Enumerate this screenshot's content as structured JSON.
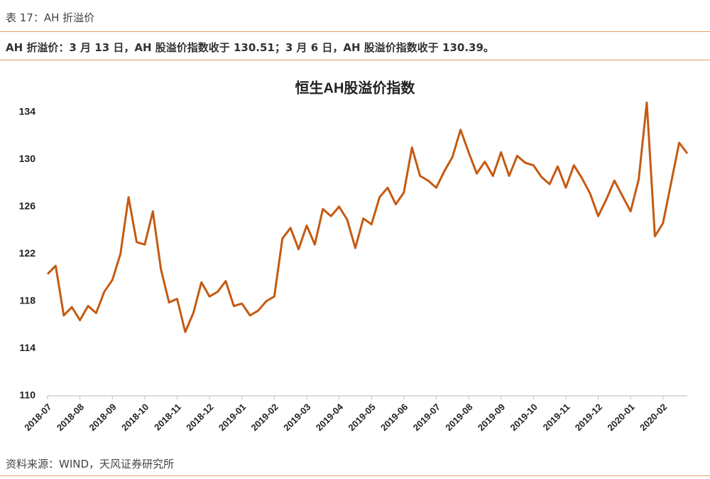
{
  "header": {
    "title": "表 17：AH 折溢价",
    "subtitle": "AH 折溢价：3 月 13 日，AH 股溢价指数收于 130.51；3 月 6 日，AH 股溢价指数收于 130.39。"
  },
  "source": "资料来源：WIND，天风证券研究所",
  "chart_data": {
    "type": "line",
    "title": "恒生AH股溢价指数",
    "color": "#c55a11",
    "categories": [
      "2018-07",
      null,
      null,
      null,
      "2018-08",
      null,
      null,
      null,
      "2018-09",
      null,
      null,
      null,
      "2018-10",
      null,
      null,
      null,
      "2018-11",
      null,
      null,
      null,
      "2018-12",
      null,
      null,
      null,
      "2019-01",
      null,
      null,
      null,
      "2019-02",
      null,
      null,
      null,
      "2019-03",
      null,
      null,
      null,
      "2019-04",
      null,
      null,
      null,
      "2019-05",
      null,
      null,
      null,
      "2019-06",
      null,
      null,
      null,
      "2019-07",
      null,
      null,
      null,
      "2019-08",
      null,
      null,
      null,
      "2019-09",
      null,
      null,
      null,
      "2019-10",
      null,
      null,
      null,
      "2019-11",
      null,
      null,
      null,
      "2019-12",
      null,
      null,
      null,
      "2020-01",
      null,
      null,
      null,
      "2020-02",
      null,
      null,
      null
    ],
    "values": [
      120.3,
      121.0,
      116.8,
      117.5,
      116.4,
      117.6,
      117.0,
      118.8,
      119.8,
      122.0,
      126.8,
      123.0,
      122.8,
      125.6,
      120.7,
      117.9,
      118.2,
      115.4,
      117.0,
      119.6,
      118.4,
      118.8,
      119.7,
      117.6,
      117.8,
      116.8,
      117.2,
      118.0,
      118.4,
      123.3,
      124.2,
      122.4,
      124.4,
      122.8,
      125.8,
      125.2,
      126.0,
      124.9,
      122.5,
      125.0,
      124.5,
      126.8,
      127.6,
      126.2,
      127.2,
      131.0,
      128.6,
      128.2,
      127.6,
      129.0,
      130.2,
      132.5,
      130.6,
      128.8,
      129.8,
      128.6,
      130.6,
      128.6,
      130.3,
      129.7,
      129.5,
      128.5,
      127.9,
      129.4,
      127.6,
      129.5,
      128.4,
      127.1,
      125.2,
      126.6,
      128.2,
      126.9,
      125.6,
      128.3,
      134.8,
      123.5,
      124.6,
      128.0,
      131.4,
      130.5
    ],
    "ylim": [
      110,
      135
    ],
    "yticks": [
      110,
      114,
      118,
      122,
      126,
      130,
      134
    ],
    "grid": false
  }
}
